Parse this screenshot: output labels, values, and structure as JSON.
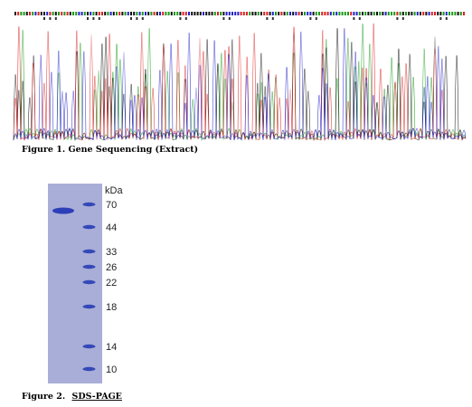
{
  "figure1": {
    "caption": "Figure 1. Gene Sequencing (Extract)"
  },
  "figure2": {
    "caption_prefix": "Figure 2.",
    "caption_name": "SDS-PAGE",
    "unit": "kDa",
    "markers": [
      70,
      44,
      33,
      26,
      22,
      18,
      14,
      10
    ]
  }
}
